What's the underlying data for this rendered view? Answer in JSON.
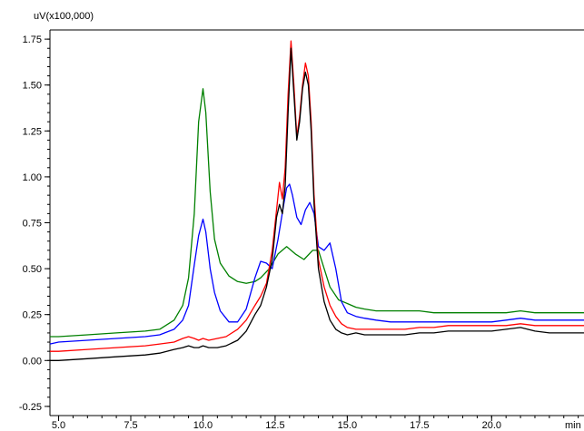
{
  "chart_data": {
    "type": "line",
    "title": "",
    "ylabel": "uV(x100,000)",
    "xlabel": "min",
    "xlim": [
      4.7,
      23.2
    ],
    "ylim": [
      -0.3,
      1.8
    ],
    "x_ticks": [
      5.0,
      7.5,
      10.0,
      12.5,
      15.0,
      17.5,
      20.0
    ],
    "x_tick_labels": [
      "5.0",
      "7.5",
      "10.0",
      "12.5",
      "15.0",
      "17.5",
      "20.0"
    ],
    "y_ticks": [
      -0.25,
      0.0,
      0.25,
      0.5,
      0.75,
      1.0,
      1.25,
      1.5,
      1.75
    ],
    "y_tick_labels": [
      "-0.25",
      "0.00",
      "0.25",
      "0.50",
      "0.75",
      "1.00",
      "1.25",
      "1.50",
      "1.75"
    ],
    "grid": false,
    "legend": "none",
    "series": [
      {
        "color": "#008000",
        "x": [
          4.7,
          5.0,
          6.0,
          7.0,
          8.0,
          8.5,
          9.0,
          9.3,
          9.5,
          9.7,
          9.85,
          10.0,
          10.1,
          10.25,
          10.4,
          10.6,
          10.9,
          11.2,
          11.5,
          11.8,
          12.0,
          12.3,
          12.6,
          12.9,
          13.2,
          13.5,
          13.8,
          14.0,
          14.2,
          14.4,
          14.7,
          15.0,
          15.3,
          15.6,
          16.0,
          16.5,
          17.0,
          17.5,
          18.0,
          18.5,
          19.0,
          19.5,
          20.0,
          20.5,
          21.0,
          21.5,
          22.0,
          22.5,
          23.2
        ],
        "values": [
          0.13,
          0.13,
          0.14,
          0.15,
          0.16,
          0.17,
          0.22,
          0.3,
          0.45,
          0.8,
          1.3,
          1.48,
          1.35,
          0.92,
          0.66,
          0.53,
          0.46,
          0.43,
          0.42,
          0.43,
          0.45,
          0.5,
          0.58,
          0.62,
          0.58,
          0.55,
          0.6,
          0.6,
          0.5,
          0.4,
          0.33,
          0.31,
          0.29,
          0.28,
          0.27,
          0.27,
          0.27,
          0.27,
          0.26,
          0.26,
          0.26,
          0.26,
          0.26,
          0.26,
          0.27,
          0.26,
          0.26,
          0.26,
          0.26
        ]
      },
      {
        "color": "#0000ff",
        "x": [
          4.7,
          5.0,
          6.0,
          7.0,
          8.0,
          8.5,
          9.0,
          9.3,
          9.5,
          9.7,
          9.85,
          10.0,
          10.1,
          10.25,
          10.4,
          10.6,
          10.9,
          11.2,
          11.5,
          11.8,
          12.0,
          12.2,
          12.4,
          12.6,
          12.8,
          12.9,
          13.0,
          13.1,
          13.25,
          13.4,
          13.55,
          13.7,
          13.85,
          14.0,
          14.2,
          14.4,
          14.6,
          14.8,
          15.0,
          15.3,
          15.6,
          16.0,
          16.5,
          17.0,
          17.5,
          18.0,
          18.5,
          19.0,
          19.5,
          20.0,
          20.5,
          21.0,
          21.5,
          22.0,
          22.5,
          23.2
        ],
        "values": [
          0.09,
          0.1,
          0.11,
          0.12,
          0.13,
          0.14,
          0.17,
          0.22,
          0.3,
          0.52,
          0.68,
          0.77,
          0.7,
          0.5,
          0.37,
          0.27,
          0.21,
          0.21,
          0.28,
          0.45,
          0.54,
          0.53,
          0.5,
          0.66,
          0.85,
          0.94,
          0.96,
          0.9,
          0.78,
          0.74,
          0.82,
          0.86,
          0.8,
          0.62,
          0.6,
          0.64,
          0.5,
          0.32,
          0.26,
          0.24,
          0.23,
          0.22,
          0.21,
          0.21,
          0.21,
          0.21,
          0.21,
          0.21,
          0.21,
          0.21,
          0.22,
          0.23,
          0.22,
          0.22,
          0.22,
          0.22
        ]
      },
      {
        "color": "#ff0000",
        "x": [
          4.7,
          5.0,
          6.0,
          7.0,
          8.0,
          8.5,
          9.0,
          9.3,
          9.5,
          9.7,
          9.85,
          10.0,
          10.2,
          10.5,
          10.8,
          11.2,
          11.5,
          11.8,
          12.0,
          12.2,
          12.4,
          12.55,
          12.65,
          12.75,
          12.85,
          12.95,
          13.05,
          13.15,
          13.25,
          13.35,
          13.45,
          13.55,
          13.65,
          13.75,
          13.85,
          14.0,
          14.2,
          14.4,
          14.6,
          14.8,
          15.0,
          15.3,
          15.6,
          16.0,
          16.5,
          17.0,
          17.5,
          18.0,
          18.5,
          19.0,
          19.5,
          20.0,
          20.5,
          21.0,
          21.5,
          22.0,
          22.5,
          23.2
        ],
        "values": [
          0.05,
          0.05,
          0.06,
          0.07,
          0.08,
          0.09,
          0.1,
          0.12,
          0.13,
          0.12,
          0.11,
          0.12,
          0.11,
          0.12,
          0.13,
          0.17,
          0.22,
          0.3,
          0.35,
          0.42,
          0.6,
          0.82,
          0.97,
          0.88,
          1.05,
          1.45,
          1.74,
          1.5,
          1.22,
          1.33,
          1.5,
          1.62,
          1.55,
          1.3,
          0.9,
          0.55,
          0.4,
          0.3,
          0.24,
          0.2,
          0.18,
          0.17,
          0.17,
          0.17,
          0.17,
          0.17,
          0.18,
          0.18,
          0.19,
          0.19,
          0.19,
          0.19,
          0.19,
          0.2,
          0.19,
          0.19,
          0.19,
          0.19
        ]
      },
      {
        "color": "#000000",
        "x": [
          4.7,
          5.0,
          6.0,
          7.0,
          8.0,
          8.5,
          9.0,
          9.3,
          9.5,
          9.7,
          9.85,
          10.0,
          10.2,
          10.5,
          10.8,
          11.2,
          11.5,
          11.8,
          12.0,
          12.2,
          12.4,
          12.55,
          12.65,
          12.75,
          12.85,
          12.95,
          13.05,
          13.15,
          13.25,
          13.35,
          13.45,
          13.55,
          13.65,
          13.75,
          13.85,
          14.0,
          14.2,
          14.4,
          14.6,
          14.8,
          15.0,
          15.3,
          15.6,
          16.0,
          16.5,
          17.0,
          17.5,
          18.0,
          18.5,
          19.0,
          19.5,
          20.0,
          20.5,
          21.0,
          21.5,
          22.0,
          22.5,
          23.2
        ],
        "values": [
          0.0,
          0.0,
          0.01,
          0.02,
          0.03,
          0.04,
          0.06,
          0.07,
          0.08,
          0.07,
          0.07,
          0.08,
          0.07,
          0.07,
          0.08,
          0.11,
          0.16,
          0.25,
          0.3,
          0.4,
          0.55,
          0.78,
          0.85,
          0.8,
          0.95,
          1.35,
          1.7,
          1.45,
          1.2,
          1.3,
          1.48,
          1.57,
          1.5,
          1.25,
          0.85,
          0.5,
          0.32,
          0.22,
          0.17,
          0.15,
          0.14,
          0.15,
          0.14,
          0.14,
          0.14,
          0.14,
          0.15,
          0.15,
          0.16,
          0.16,
          0.16,
          0.16,
          0.17,
          0.18,
          0.16,
          0.15,
          0.15,
          0.15
        ]
      }
    ]
  }
}
